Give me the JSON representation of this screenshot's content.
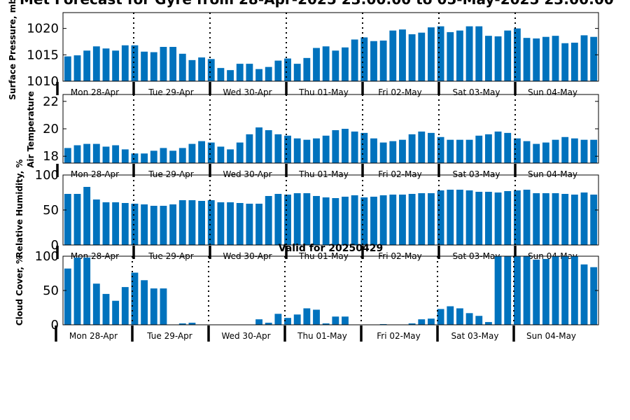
{
  "figure": {
    "title": "Met Forecast for Gyre from 28-Apr-2025 23:00:00 to 05-May-2025 23:00:00"
  },
  "chart_data": [
    {
      "type": "bar",
      "ylabel": "Surface Pressure, mb",
      "ylim": [
        1010,
        1023
      ],
      "yticks": [
        1010,
        1015,
        1020
      ],
      "day_labels": [
        "Mon 28-Apr",
        "Tue 29-Apr",
        "Wed 30-Apr",
        "Thu 01-May",
        "Fri 02-May",
        "Sat 03-May",
        "Sun 04-May"
      ],
      "values": [
        1014.7,
        1014.9,
        1015.8,
        1016.6,
        1016.2,
        1015.8,
        1016.8,
        1016.8,
        1015.6,
        1015.5,
        1016.5,
        1016.5,
        1015.2,
        1014.0,
        1014.5,
        1014.2,
        1012.5,
        1012.1,
        1013.3,
        1013.3,
        1012.3,
        1012.7,
        1013.9,
        1014.3,
        1013.3,
        1014.4,
        1016.3,
        1016.6,
        1015.8,
        1016.4,
        1017.9,
        1018.3,
        1017.6,
        1017.7,
        1019.6,
        1019.8,
        1018.9,
        1019.2,
        1020.2,
        1020.4,
        1019.3,
        1019.6,
        1020.4,
        1020.4,
        1018.6,
        1018.5,
        1019.6,
        1020.0,
        1018.2,
        1018.1,
        1018.4,
        1018.6,
        1017.2,
        1017.3,
        1018.7,
        1018.4
      ]
    },
    {
      "type": "bar",
      "ylabel": "Air Temperature",
      "ylim": [
        17.5,
        22.5
      ],
      "yticks": [
        18,
        20,
        22
      ],
      "day_labels": [
        "Mon 28-Apr",
        "Tue 29-Apr",
        "Wed 30-Apr",
        "Thu 01-May",
        "Fri 02-May",
        "Sat 03-May",
        "Sun 04-May"
      ],
      "values": [
        18.6,
        18.8,
        18.9,
        18.9,
        18.7,
        18.8,
        18.5,
        18.2,
        18.2,
        18.4,
        18.6,
        18.4,
        18.6,
        18.9,
        19.1,
        19.0,
        18.7,
        18.5,
        19.0,
        19.6,
        20.1,
        19.9,
        19.6,
        19.5,
        19.3,
        19.2,
        19.3,
        19.5,
        19.9,
        20.0,
        19.8,
        19.7,
        19.3,
        19.0,
        19.1,
        19.2,
        19.6,
        19.8,
        19.7,
        19.4,
        19.2,
        19.2,
        19.2,
        19.5,
        19.6,
        19.8,
        19.7,
        19.3,
        19.1,
        18.9,
        19.0,
        19.2,
        19.4,
        19.3,
        19.2,
        19.2
      ]
    },
    {
      "type": "bar",
      "ylabel": "Relative Humidity, %",
      "ylim": [
        0,
        100
      ],
      "yticks": [
        0,
        50,
        100
      ],
      "day_labels": [
        "Mon 28-Apr",
        "Tue 29-Apr",
        "Wed 30-Apr",
        "Thu 01-May",
        "Fri 02-May",
        "Sat 03-May",
        "Sun 04-May"
      ],
      "values": [
        73,
        73,
        83,
        65,
        61,
        61,
        60,
        59,
        58,
        56,
        56,
        58,
        64,
        64,
        63,
        64,
        61,
        61,
        60,
        59,
        59,
        70,
        73,
        72,
        74,
        74,
        70,
        68,
        67,
        69,
        71,
        68,
        69,
        71,
        72,
        72,
        73,
        74,
        74,
        78,
        79,
        79,
        78,
        76,
        76,
        75,
        77,
        78,
        79,
        74,
        74,
        74,
        73,
        72,
        75,
        72
      ]
    },
    {
      "type": "bar",
      "subtitle": "Valid for 20250429",
      "ylabel": "Cloud Cover, %",
      "ylim": [
        0,
        100
      ],
      "yticks": [
        0,
        50,
        100
      ],
      "day_labels": [
        "Mon 28-Apr",
        "Tue 29-Apr",
        "Wed 30-Apr",
        "Thu 01-May",
        "Fri 02-May",
        "Sat 03-May",
        "Sun 04-May"
      ],
      "values": [
        82,
        98,
        98,
        60,
        45,
        35,
        55,
        76,
        65,
        53,
        53,
        0,
        2,
        3,
        0,
        0,
        0,
        0,
        0,
        0,
        8,
        3,
        16,
        10,
        15,
        24,
        22,
        2,
        12,
        12,
        0,
        0,
        0,
        1,
        0,
        0,
        2,
        8,
        9,
        23,
        27,
        24,
        17,
        13,
        4,
        100,
        100,
        100,
        100,
        95,
        96,
        100,
        100,
        100,
        88,
        84
      ]
    }
  ]
}
